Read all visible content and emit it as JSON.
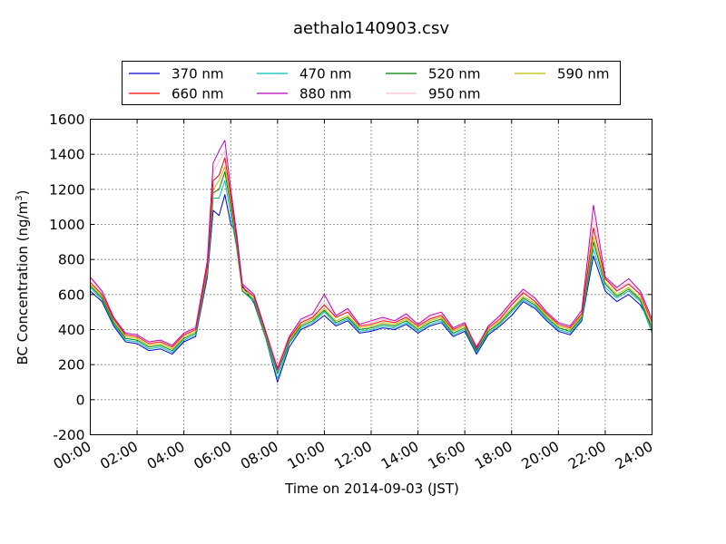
{
  "chart_data": {
    "type": "line",
    "title": "aethalo140903.csv",
    "xlabel": "Time on 2014-09-03 (JST)",
    "ylabel": "BC Concentration (ng/m",
    "ylabel_sup": "3",
    "ylabel_end": ")",
    "xlim": [
      "00:00",
      "24:00"
    ],
    "ylim": [
      -200,
      1600
    ],
    "x_ticks": [
      "00:00",
      "02:00",
      "04:00",
      "06:00",
      "08:00",
      "10:00",
      "12:00",
      "14:00",
      "16:00",
      "18:00",
      "20:00",
      "22:00",
      "24:00"
    ],
    "y_ticks": [
      -200,
      0,
      200,
      400,
      600,
      800,
      1000,
      1200,
      1400,
      1600
    ],
    "grid": true,
    "legend_position": "top",
    "x_hours": [
      0,
      0.5,
      1,
      1.5,
      2,
      2.5,
      3,
      3.5,
      4,
      4.5,
      5,
      5.25,
      5.5,
      5.75,
      6,
      6.25,
      6.5,
      7,
      7.5,
      8,
      8.5,
      9,
      9.5,
      10,
      10.5,
      11,
      11.5,
      12,
      12.5,
      13,
      13.5,
      14,
      14.5,
      15,
      15.5,
      16,
      16.5,
      17,
      17.5,
      18,
      18.5,
      19,
      19.5,
      20,
      20.5,
      21,
      21.5,
      22,
      22.5,
      23,
      23.5,
      24
    ],
    "series": [
      {
        "name": "370 nm",
        "color": "#0000cc",
        "values": [
          620,
          560,
          420,
          330,
          320,
          280,
          290,
          260,
          330,
          360,
          700,
          1080,
          1050,
          1170,
          1000,
          950,
          650,
          550,
          350,
          100,
          300,
          400,
          430,
          480,
          420,
          450,
          380,
          390,
          410,
          400,
          430,
          380,
          420,
          440,
          360,
          390,
          260,
          370,
          420,
          480,
          560,
          520,
          450,
          390,
          370,
          450,
          820,
          620,
          560,
          600,
          540,
          420
        ]
      },
      {
        "name": "470 nm",
        "color": "#00bfbf",
        "values": [
          640,
          570,
          430,
          340,
          330,
          290,
          300,
          270,
          340,
          370,
          720,
          1150,
          1150,
          1250,
          1050,
          870,
          620,
          560,
          350,
          120,
          320,
          410,
          440,
          500,
          430,
          460,
          390,
          400,
          420,
          410,
          440,
          390,
          430,
          450,
          370,
          400,
          270,
          380,
          430,
          500,
          570,
          530,
          460,
          400,
          380,
          460,
          860,
          640,
          580,
          620,
          560,
          380
        ]
      },
      {
        "name": "520 nm",
        "color": "#007f00",
        "values": [
          650,
          580,
          440,
          350,
          340,
          300,
          310,
          280,
          350,
          380,
          730,
          1180,
          1200,
          1300,
          1100,
          880,
          620,
          570,
          360,
          150,
          330,
          420,
          450,
          510,
          440,
          470,
          400,
          410,
          430,
          420,
          450,
          400,
          440,
          460,
          380,
          410,
          280,
          390,
          440,
          510,
          580,
          540,
          470,
          410,
          390,
          470,
          900,
          660,
          590,
          630,
          570,
          400
        ]
      },
      {
        "name": "590 nm",
        "color": "#bfbf00",
        "values": [
          660,
          590,
          450,
          360,
          350,
          310,
          320,
          290,
          360,
          390,
          740,
          1200,
          1250,
          1330,
          1130,
          900,
          630,
          580,
          370,
          170,
          340,
          430,
          460,
          520,
          450,
          480,
          410,
          420,
          440,
          430,
          460,
          410,
          450,
          470,
          390,
          420,
          290,
          400,
          450,
          520,
          590,
          550,
          480,
          420,
          400,
          480,
          930,
          670,
          600,
          640,
          580,
          420
        ]
      },
      {
        "name": "660 nm",
        "color": "#ff0000",
        "values": [
          670,
          600,
          460,
          370,
          360,
          320,
          330,
          300,
          370,
          400,
          760,
          1250,
          1280,
          1380,
          1160,
          920,
          640,
          590,
          380,
          180,
          350,
          440,
          470,
          540,
          470,
          500,
          420,
          430,
          450,
          440,
          470,
          420,
          460,
          480,
          400,
          430,
          300,
          410,
          460,
          540,
          610,
          560,
          490,
          430,
          410,
          490,
          980,
          690,
          620,
          660,
          600,
          440
        ]
      },
      {
        "name": "880 nm",
        "color": "#bf00bf",
        "values": [
          700,
          620,
          470,
          380,
          370,
          330,
          340,
          310,
          380,
          410,
          790,
          1350,
          1420,
          1480,
          1200,
          950,
          660,
          600,
          390,
          170,
          360,
          460,
          490,
          600,
          480,
          520,
          430,
          450,
          470,
          450,
          490,
          430,
          480,
          500,
          410,
          440,
          290,
          420,
          480,
          560,
          630,
          580,
          500,
          440,
          420,
          510,
          1110,
          700,
          640,
          690,
          620,
          460
        ]
      },
      {
        "name": "950 nm",
        "color": "#ffc0cb",
        "values": [
          690,
          610,
          460,
          380,
          370,
          330,
          340,
          310,
          380,
          420,
          800,
          1300,
          1360,
          1420,
          1170,
          930,
          650,
          600,
          390,
          200,
          360,
          450,
          480,
          560,
          480,
          510,
          430,
          440,
          460,
          450,
          480,
          430,
          470,
          490,
          410,
          440,
          310,
          420,
          470,
          550,
          620,
          570,
          500,
          440,
          420,
          500,
          1040,
          690,
          630,
          670,
          610,
          450
        ]
      }
    ]
  }
}
